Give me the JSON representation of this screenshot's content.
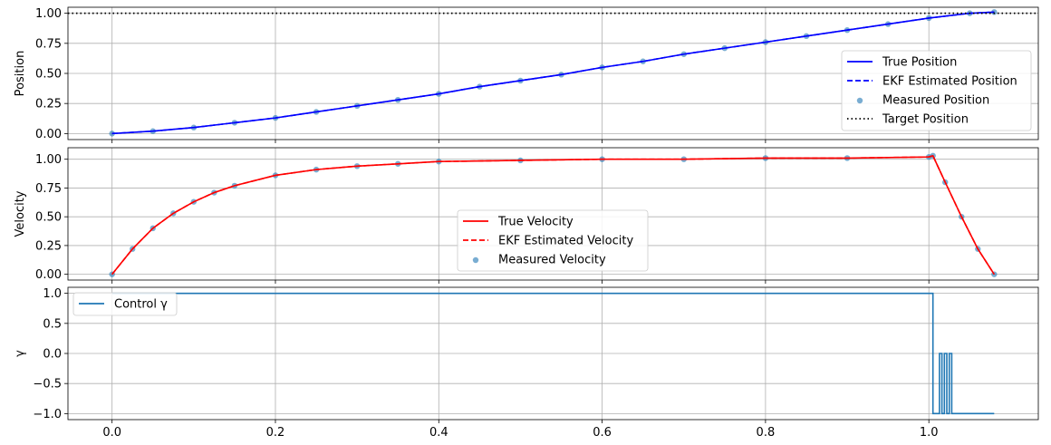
{
  "chart_data": [
    {
      "type": "line",
      "title": "",
      "xlabel": "",
      "ylabel": "Position",
      "xlim": [
        -0.054,
        1.134
      ],
      "ylim": [
        -0.05,
        1.05
      ],
      "xticks": [
        0.0,
        0.2,
        0.4,
        0.6,
        0.8,
        1.0
      ],
      "yticks": [
        0.0,
        0.25,
        0.5,
        0.75,
        1.0
      ],
      "ytick_labels": [
        "0.00",
        "0.25",
        "0.50",
        "0.75",
        "1.00"
      ],
      "grid": true,
      "legend_position": "right",
      "series": [
        {
          "name": "True Position",
          "kind": "line",
          "color": "#0000ff",
          "style": "solid",
          "x": [
            0.0,
            0.05,
            0.1,
            0.15,
            0.2,
            0.25,
            0.3,
            0.35,
            0.4,
            0.45,
            0.5,
            0.55,
            0.6,
            0.65,
            0.7,
            0.75,
            0.8,
            0.85,
            0.9,
            0.95,
            1.0,
            1.05,
            1.08
          ],
          "y": [
            0.0,
            0.02,
            0.05,
            0.09,
            0.13,
            0.18,
            0.23,
            0.28,
            0.33,
            0.39,
            0.44,
            0.49,
            0.55,
            0.6,
            0.66,
            0.71,
            0.76,
            0.81,
            0.86,
            0.91,
            0.96,
            1.0,
            1.01
          ]
        },
        {
          "name": "EKF Estimated Position",
          "kind": "line",
          "color": "#0000ff",
          "style": "dashed",
          "x": [
            0.0,
            0.05,
            0.1,
            0.15,
            0.2,
            0.25,
            0.3,
            0.35,
            0.4,
            0.45,
            0.5,
            0.55,
            0.6,
            0.65,
            0.7,
            0.75,
            0.8,
            0.85,
            0.9,
            0.95,
            1.0,
            1.05,
            1.08
          ],
          "y": [
            0.0,
            0.02,
            0.05,
            0.09,
            0.13,
            0.18,
            0.23,
            0.28,
            0.33,
            0.39,
            0.44,
            0.49,
            0.55,
            0.6,
            0.66,
            0.71,
            0.76,
            0.81,
            0.86,
            0.91,
            0.96,
            1.0,
            1.01
          ]
        },
        {
          "name": "Measured Position",
          "kind": "scatter",
          "color": "#1f77b4",
          "x": [
            0.0,
            0.05,
            0.1,
            0.15,
            0.2,
            0.25,
            0.3,
            0.35,
            0.4,
            0.45,
            0.5,
            0.55,
            0.6,
            0.65,
            0.7,
            0.75,
            0.8,
            0.85,
            0.9,
            0.95,
            1.0,
            1.05,
            1.08
          ],
          "y": [
            0.0,
            0.02,
            0.05,
            0.09,
            0.13,
            0.18,
            0.23,
            0.28,
            0.33,
            0.39,
            0.44,
            0.49,
            0.55,
            0.6,
            0.66,
            0.71,
            0.76,
            0.81,
            0.86,
            0.91,
            0.96,
            1.0,
            1.01
          ]
        },
        {
          "name": "Target Position",
          "kind": "hline",
          "color": "#000000",
          "style": "dotted",
          "y": 1.0
        }
      ]
    },
    {
      "type": "line",
      "title": "",
      "xlabel": "",
      "ylabel": "Velocity",
      "xlim": [
        -0.054,
        1.134
      ],
      "ylim": [
        -0.05,
        1.1
      ],
      "xticks": [
        0.0,
        0.2,
        0.4,
        0.6,
        0.8,
        1.0
      ],
      "yticks": [
        0.0,
        0.25,
        0.5,
        0.75,
        1.0
      ],
      "ytick_labels": [
        "0.00",
        "0.25",
        "0.50",
        "0.75",
        "1.00"
      ],
      "grid": true,
      "legend_position": "lower center",
      "series": [
        {
          "name": "True Velocity",
          "kind": "line",
          "color": "#ff0000",
          "style": "solid",
          "x": [
            0.0,
            0.025,
            0.05,
            0.075,
            0.1,
            0.125,
            0.15,
            0.2,
            0.25,
            0.3,
            0.35,
            0.4,
            0.5,
            0.6,
            0.7,
            0.8,
            0.9,
            1.0,
            1.005,
            1.02,
            1.04,
            1.06,
            1.08
          ],
          "y": [
            0.0,
            0.22,
            0.4,
            0.53,
            0.63,
            0.71,
            0.77,
            0.86,
            0.91,
            0.94,
            0.96,
            0.98,
            0.99,
            1.0,
            1.0,
            1.01,
            1.01,
            1.02,
            1.03,
            0.8,
            0.5,
            0.22,
            0.0
          ]
        },
        {
          "name": "EKF Estimated Velocity",
          "kind": "line",
          "color": "#ff0000",
          "style": "dashed",
          "x": [
            0.0,
            0.025,
            0.05,
            0.075,
            0.1,
            0.125,
            0.15,
            0.2,
            0.25,
            0.3,
            0.35,
            0.4,
            0.5,
            0.6,
            0.7,
            0.8,
            0.9,
            1.0,
            1.005,
            1.02,
            1.04,
            1.06,
            1.08
          ],
          "y": [
            0.0,
            0.22,
            0.4,
            0.53,
            0.63,
            0.71,
            0.77,
            0.86,
            0.91,
            0.94,
            0.96,
            0.98,
            0.99,
            1.0,
            1.0,
            1.01,
            1.01,
            1.02,
            1.03,
            0.8,
            0.5,
            0.22,
            0.0
          ]
        },
        {
          "name": "Measured Velocity",
          "kind": "scatter",
          "color": "#1f77b4",
          "x": [
            0.0,
            0.025,
            0.05,
            0.075,
            0.1,
            0.125,
            0.15,
            0.2,
            0.25,
            0.3,
            0.35,
            0.4,
            0.5,
            0.6,
            0.7,
            0.8,
            0.9,
            1.0,
            1.005,
            1.02,
            1.04,
            1.06,
            1.08
          ],
          "y": [
            0.0,
            0.22,
            0.4,
            0.53,
            0.63,
            0.71,
            0.77,
            0.86,
            0.91,
            0.94,
            0.96,
            0.98,
            0.99,
            1.0,
            1.0,
            1.01,
            1.01,
            1.02,
            1.03,
            0.8,
            0.5,
            0.22,
            0.0
          ]
        }
      ]
    },
    {
      "type": "line",
      "title": "",
      "xlabel": "",
      "ylabel": "γ",
      "xlim": [
        -0.054,
        1.134
      ],
      "ylim": [
        -1.1,
        1.1
      ],
      "xticks": [
        0.0,
        0.2,
        0.4,
        0.6,
        0.8,
        1.0
      ],
      "xtick_labels": [
        "0.0",
        "0.2",
        "0.4",
        "0.6",
        "0.8",
        "1.0"
      ],
      "yticks": [
        -1.0,
        -0.5,
        0.0,
        0.5,
        1.0
      ],
      "ytick_labels": [
        "−1.0",
        "−0.5",
        "0.0",
        "0.5",
        "1.0"
      ],
      "grid": true,
      "legend_position": "upper left",
      "series": [
        {
          "name": "Control γ",
          "kind": "step",
          "color": "#1f77b4",
          "style": "solid",
          "x": [
            0.0,
            1.005,
            1.005,
            1.013,
            1.013,
            1.016,
            1.016,
            1.019,
            1.019,
            1.022,
            1.022,
            1.025,
            1.025,
            1.028,
            1.028,
            1.031,
            1.031,
            1.08
          ],
          "y": [
            1.0,
            1.0,
            -1.0,
            -1.0,
            0.0,
            0.0,
            -1.0,
            -1.0,
            0.0,
            0.0,
            -1.0,
            -1.0,
            0.0,
            0.0,
            -1.0,
            -1.0,
            -1.0,
            -1.0
          ]
        }
      ]
    }
  ]
}
